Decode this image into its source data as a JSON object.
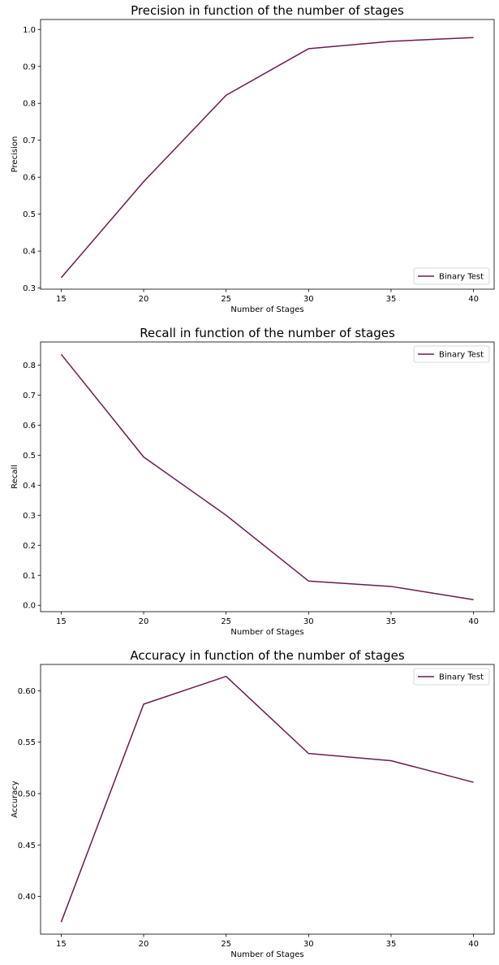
{
  "colors": {
    "line": "#6b1a4f",
    "axes": "#000000",
    "legend_border": "#cccccc",
    "background": "#ffffff"
  },
  "chart_data": [
    {
      "type": "line",
      "title": "Precision in function of the number of stages",
      "xlabel": "Number of Stages",
      "ylabel": "Precision",
      "x": [
        15,
        20,
        25,
        30,
        35,
        40
      ],
      "xticks": [
        "15",
        "20",
        "25",
        "30",
        "35",
        "40"
      ],
      "yticks": [
        "0.3",
        "0.4",
        "0.5",
        "0.6",
        "0.7",
        "0.8",
        "0.9",
        "1.0"
      ],
      "ylim": [
        0.297,
        1.027
      ],
      "series": [
        {
          "name": "Binary Test",
          "values": [
            0.328,
            0.588,
            0.822,
            0.948,
            0.968,
            0.978
          ]
        }
      ],
      "legend": "lower-right",
      "grid": false
    },
    {
      "type": "line",
      "title": "Recall in function of the number of stages",
      "xlabel": "Number of Stages",
      "ylabel": "Recall",
      "x": [
        15,
        20,
        25,
        30,
        35,
        40
      ],
      "xticks": [
        "15",
        "20",
        "25",
        "30",
        "35",
        "40"
      ],
      "yticks": [
        "0.0",
        "0.1",
        "0.2",
        "0.3",
        "0.4",
        "0.5",
        "0.6",
        "0.7",
        "0.8"
      ],
      "ylim": [
        -0.021,
        0.877
      ],
      "series": [
        {
          "name": "Binary Test",
          "values": [
            0.836,
            0.494,
            0.3,
            0.081,
            0.063,
            0.019
          ]
        }
      ],
      "legend": "upper-right",
      "grid": false
    },
    {
      "type": "line",
      "title": "Accuracy in function of the number of stages",
      "xlabel": "Number of Stages",
      "ylabel": "Accuracy",
      "x": [
        15,
        20,
        25,
        30,
        35,
        40
      ],
      "xticks": [
        "15",
        "20",
        "25",
        "30",
        "35",
        "40"
      ],
      "yticks": [
        "0.40",
        "0.45",
        "0.50",
        "0.55",
        "0.60"
      ],
      "ylim": [
        0.3633,
        0.6256
      ],
      "series": [
        {
          "name": "Binary Test",
          "values": [
            0.375,
            0.587,
            0.614,
            0.539,
            0.532,
            0.511
          ]
        }
      ],
      "legend": "upper-right",
      "grid": false
    }
  ]
}
